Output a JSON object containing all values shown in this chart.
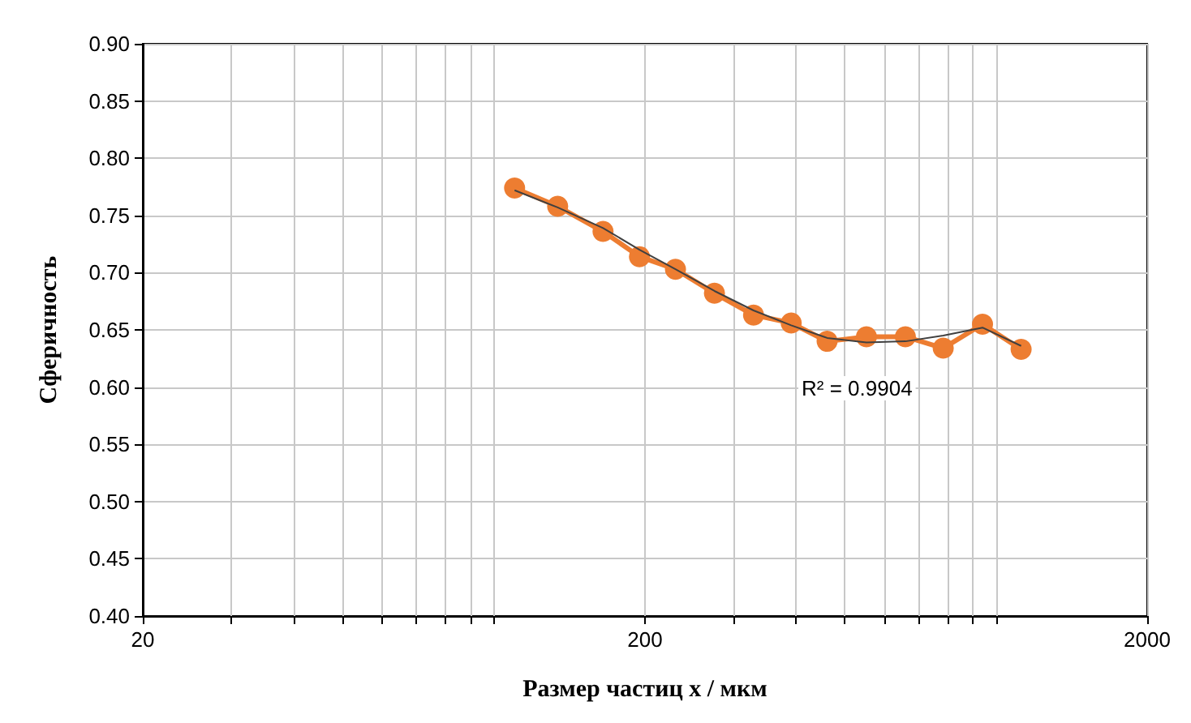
{
  "chart_data": {
    "type": "line",
    "xlabel": "Размер частиц x / мкм",
    "ylabel": "Сферичность",
    "log": "x",
    "grid": true,
    "marker": "circle",
    "xlim": [
      20,
      2000
    ],
    "xticks": [
      20,
      {
        "value": 30,
        "label": null
      },
      {
        "value": 40,
        "label": null
      },
      {
        "value": 50,
        "label": null
      },
      {
        "value": 60,
        "label": null
      },
      {
        "value": 70,
        "label": null
      },
      {
        "value": 80,
        "label": null
      },
      {
        "value": 90,
        "label": null
      },
      {
        "value": 100,
        "label": null
      },
      200,
      {
        "value": 300,
        "label": null
      },
      {
        "value": 400,
        "label": null
      },
      {
        "value": 500,
        "label": null
      },
      {
        "value": 600,
        "label": null
      },
      {
        "value": 700,
        "label": null
      },
      {
        "value": 800,
        "label": null
      },
      {
        "value": 900,
        "label": null
      },
      {
        "value": 1000,
        "label": null
      },
      2000
    ],
    "ylim": [
      0.4,
      0.9
    ],
    "yticks": [
      {
        "value": 0.4,
        "label": "0.40"
      },
      {
        "value": 0.45,
        "label": "0.45"
      },
      {
        "value": 0.5,
        "label": "0.50"
      },
      {
        "value": 0.55,
        "label": "0.55"
      },
      {
        "value": 0.6,
        "label": "0.60"
      },
      {
        "value": 0.65,
        "label": "0.65"
      },
      {
        "value": 0.7,
        "label": "0.70"
      },
      {
        "value": 0.75,
        "label": "0.75"
      },
      {
        "value": 0.8,
        "label": "0.80"
      },
      {
        "value": 0.85,
        "label": "0.85"
      },
      {
        "value": 0.9,
        "label": "0.90"
      }
    ],
    "series": [
      {
        "color": "#ed7d31",
        "x": [
          110,
          134,
          165,
          195,
          230,
          275,
          329,
          391,
          461,
          552,
          660,
          785,
          940,
          1122
        ],
        "values": [
          0.774,
          0.758,
          0.736,
          0.714,
          0.703,
          0.682,
          0.663,
          0.656,
          0.64,
          0.644,
          0.644,
          0.634,
          0.655,
          0.633
        ]
      },
      {
        "marker": "none",
        "color": "#404040",
        "x": [
          110,
          134,
          165,
          195,
          230,
          275,
          329,
          391,
          461,
          552,
          660,
          785,
          940,
          1122
        ],
        "values": [
          0.772,
          0.757,
          0.739,
          0.72,
          0.703,
          0.684,
          0.667,
          0.654,
          0.643,
          0.639,
          0.64,
          0.645,
          0.652,
          0.636
        ]
      }
    ],
    "annotations": [
      "R² = 0.9904"
    ]
  }
}
